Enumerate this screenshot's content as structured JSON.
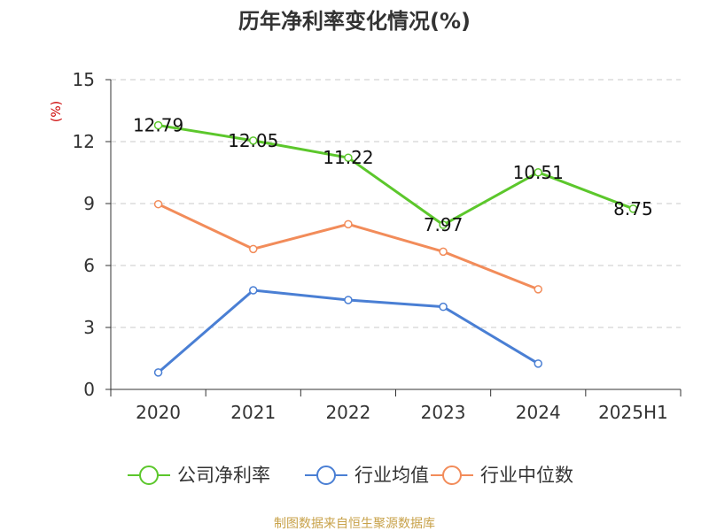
{
  "chart_data": {
    "type": "line",
    "title": "历年净利率变化情况(%)",
    "ylabel": "(%)",
    "xlabel": "",
    "categories": [
      "2020",
      "2021",
      "2022",
      "2023",
      "2024",
      "2025H1"
    ],
    "yticks": [
      "0",
      "3",
      "6",
      "9",
      "12",
      "15"
    ],
    "ylim": [
      0,
      15
    ],
    "grid": true,
    "legend_position": "bottom",
    "series": [
      {
        "name": "公司净利率",
        "color": "#5cc72c",
        "values": [
          12.79,
          12.05,
          11.22,
          7.97,
          10.51,
          8.75
        ],
        "labels": [
          "12.79",
          "12.05",
          "11.22",
          "7.97",
          "10.51",
          "8.75"
        ]
      },
      {
        "name": "行业均值",
        "color": "#4a7fd4",
        "values": [
          0.82,
          4.8,
          4.33,
          4.0,
          1.25,
          null
        ]
      },
      {
        "name": "行业中位数",
        "color": "#f28c5a",
        "values": [
          8.97,
          6.8,
          8.0,
          6.67,
          4.85,
          null
        ]
      }
    ]
  },
  "source": "制图数据来自恒生聚源数据库"
}
